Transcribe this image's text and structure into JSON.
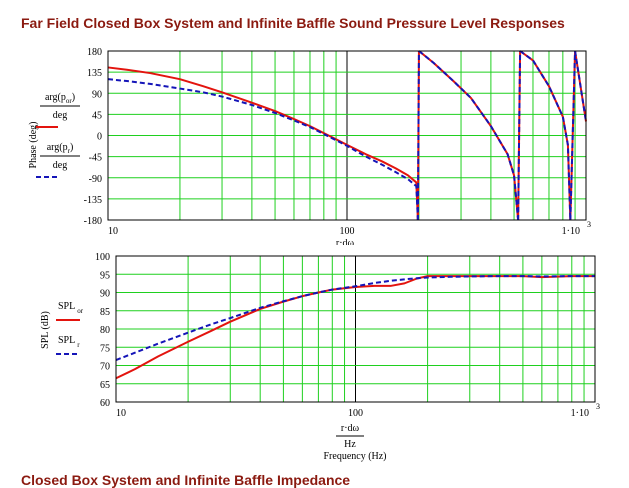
{
  "page": {
    "title": "Far Field Closed Box System and Infinite Baffle Sound Pressure Level Responses",
    "footer_title": "Closed Box System and Infinite Baffle Impedance"
  },
  "colors": {
    "red": "#e3140e",
    "blue": "#1515b8",
    "grid": "#1fd01f",
    "frame": "#000000",
    "title": "#8b1a10"
  },
  "chart_data": [
    {
      "type": "line",
      "ylabel": "Phase (deg)",
      "xscale": "log",
      "xlim": [
        10,
        1000
      ],
      "ylim": [
        -180,
        180
      ],
      "yticks": [
        -180,
        -135,
        -90,
        -45,
        0,
        45,
        90,
        135,
        180
      ],
      "xtick_labels": [
        "10",
        "100",
        "1·10"
      ],
      "xtick_exp": "3",
      "xlabel_partial": "r·dω",
      "grid": true,
      "legend": [
        {
          "num": "arg(p",
          "sub": "or",
          "close": ")",
          "den": "deg",
          "style": "solid",
          "color": "#e3140e"
        },
        {
          "num": "arg(p",
          "sub": "r",
          "close": ")",
          "den": "deg",
          "style": "dashed",
          "color": "#1515b8"
        }
      ],
      "series": [
        {
          "color": "#e3140e",
          "style": "solid",
          "x": [
            10,
            12,
            15,
            20,
            25,
            30,
            40,
            50,
            60,
            70,
            80,
            90,
            100,
            120,
            140,
            160,
            180,
            195,
            198,
            200,
            230,
            280,
            330,
            400,
            470,
            500,
            520,
            530,
            600,
            700,
            800,
            840,
            860,
            900,
            1000
          ],
          "y": [
            145,
            140,
            133,
            120,
            105,
            92,
            70,
            52,
            35,
            20,
            5,
            -8,
            -20,
            -40,
            -55,
            -70,
            -85,
            -100,
            -180,
            180,
            155,
            115,
            80,
            20,
            -40,
            -85,
            -180,
            180,
            160,
            105,
            40,
            -20,
            -180,
            180,
            30
          ]
        },
        {
          "color": "#1515b8",
          "style": "dashed",
          "x": [
            10,
            12,
            15,
            20,
            25,
            30,
            40,
            50,
            60,
            70,
            80,
            90,
            100,
            120,
            140,
            160,
            180,
            195,
            198,
            200,
            230,
            280,
            330,
            400,
            470,
            500,
            520,
            530,
            600,
            700,
            800,
            840,
            860,
            900,
            1000
          ],
          "y": [
            120,
            116,
            110,
            100,
            92,
            83,
            65,
            48,
            32,
            18,
            3,
            -10,
            -22,
            -45,
            -62,
            -78,
            -93,
            -108,
            -180,
            180,
            155,
            115,
            80,
            20,
            -40,
            -85,
            -180,
            180,
            160,
            105,
            40,
            -20,
            -180,
            180,
            30
          ]
        }
      ]
    },
    {
      "type": "line",
      "ylabel": "SPL (dB)",
      "xscale": "log",
      "xlim": [
        10,
        1000
      ],
      "ylim": [
        60,
        100
      ],
      "yticks": [
        60,
        65,
        70,
        75,
        80,
        85,
        90,
        95,
        100
      ],
      "xtick_labels": [
        "10",
        "100",
        "1·10"
      ],
      "xtick_exp": "3",
      "xlabel_num": "r·dω",
      "xlabel_den": "Hz",
      "xlabel": "Frequency (Hz)",
      "grid": true,
      "legend": [
        {
          "text": "SPL",
          "sub": "or",
          "style": "solid",
          "color": "#e3140e"
        },
        {
          "text": "SPL",
          "sub": "r",
          "style": "dashed",
          "color": "#1515b8"
        }
      ],
      "series": [
        {
          "color": "#e3140e",
          "style": "solid",
          "x": [
            10,
            12,
            15,
            20,
            25,
            30,
            40,
            50,
            60,
            70,
            80,
            100,
            120,
            140,
            160,
            180,
            200,
            250,
            300,
            400,
            500,
            600,
            800,
            1000
          ],
          "y": [
            66.5,
            69,
            72.5,
            76.5,
            79.5,
            82,
            85.5,
            87.5,
            89,
            90,
            90.8,
            91.5,
            91.8,
            91.8,
            92.5,
            93.8,
            94.5,
            94.5,
            94.5,
            94.5,
            94.5,
            94.2,
            94.5,
            94.5
          ]
        },
        {
          "color": "#1515b8",
          "style": "dashed",
          "x": [
            10,
            12,
            15,
            20,
            25,
            30,
            40,
            50,
            60,
            70,
            80,
            100,
            120,
            140,
            160,
            180,
            200,
            250,
            300,
            400,
            500,
            600,
            800,
            1000
          ],
          "y": [
            71.5,
            73.5,
            76,
            79,
            81.3,
            83,
            85.8,
            87.6,
            89,
            90,
            90.8,
            91.7,
            92.6,
            93.2,
            93.6,
            93.9,
            94.1,
            94.3,
            94.4,
            94.5,
            94.5,
            94.4,
            94.5,
            94.5
          ]
        }
      ]
    }
  ]
}
